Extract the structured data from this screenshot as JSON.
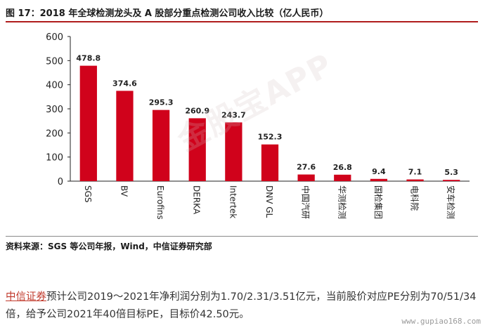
{
  "figure_title": "图 17：2018 年全球检测龙头及 A 股部分重点检测公司收入比较（亿人民币）",
  "source_note": "资料来源：SGS 等公司年报，Wind，中信证券研究部",
  "watermark": "金股宝APP",
  "paragraph": {
    "link_text": "中信证券",
    "body_text": "预计公司2019～2021年净利润分别为1.70/2.31/3.51亿元，当前股价对应PE分别为70/51/34倍，给予公司2021年40倍目标PE，目标价42.50元。"
  },
  "site_text": "www.gupiao168.com",
  "colors": {
    "bar": "#d0021b",
    "title_rule": "#b01c1c"
  },
  "chart_data": {
    "type": "bar",
    "title": "图 17：2018 年全球检测龙头及 A 股部分重点检测公司收入比较（亿人民币）",
    "categories": [
      "SGS",
      "BV",
      "Eurofins",
      "DERKA",
      "Intertek",
      "DNV GL",
      "中国汽研",
      "华测检测",
      "国检集团",
      "电科院",
      "安车检测"
    ],
    "values": [
      478.8,
      374.6,
      295.3,
      260.9,
      243.7,
      152.3,
      27.6,
      26.8,
      9.4,
      7.1,
      5.3
    ],
    "data_labels": [
      "478.8",
      "374.6",
      "295.3",
      "260.9",
      "243.7",
      "152.3",
      "27.6",
      "26.8",
      "9.4",
      "7.1",
      "5.3"
    ],
    "yticks": [
      "0",
      "100",
      "200",
      "300",
      "400",
      "500",
      "600"
    ],
    "ylim": [
      0,
      600
    ],
    "xlabel": "",
    "ylabel": "",
    "grid": false,
    "legend": "none"
  }
}
